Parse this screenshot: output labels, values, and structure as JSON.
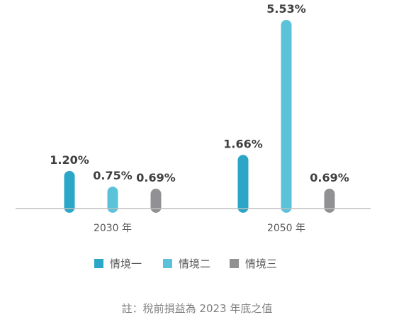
{
  "chart_data": {
    "type": "bar",
    "categories": [
      "2030 年",
      "2050 年"
    ],
    "series": [
      {
        "name": "情境一",
        "values": [
          1.2,
          1.66
        ],
        "color": "#2BA6C6"
      },
      {
        "name": "情境二",
        "values": [
          0.75,
          5.53
        ],
        "color": "#5BC2DA"
      },
      {
        "name": "情境三",
        "values": [
          0.69,
          0.69
        ],
        "color": "#919194"
      }
    ],
    "data_labels": [
      [
        "1.20%",
        "0.75%",
        "0.69%"
      ],
      [
        "1.66%",
        "5.53%",
        "0.69%"
      ]
    ],
    "unit": "%",
    "ylim": [
      0,
      5.53
    ],
    "grid": false,
    "legend_position": "bottom-center",
    "baseline_color": "#BFBFBF"
  },
  "note": "註：稅前損益為 2023 年底之值"
}
